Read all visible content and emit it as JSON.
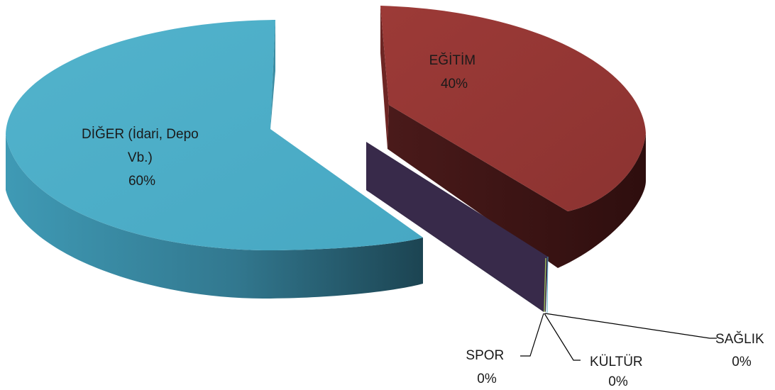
{
  "chart_data": {
    "type": "pie",
    "style": "3d-exploded",
    "title": "",
    "slices": [
      {
        "name": "EĞİTİM",
        "value": 40,
        "label": "40%",
        "color": "#943634"
      },
      {
        "name": "SAĞLIK",
        "value": 0,
        "label": "0%",
        "color": "#4f6228"
      },
      {
        "name": "KÜLTÜR",
        "value": 0,
        "label": "0%",
        "color": "#31859c"
      },
      {
        "name": "SPOR",
        "value": 0,
        "label": "0%",
        "color": "#7f6fb0"
      },
      {
        "name": "DİĞER (İdari, Depo Vb.)",
        "value": 60,
        "label": "60%",
        "color": "#4bacc6"
      }
    ],
    "data_labels": {
      "egitim": [
        "EĞİTİM",
        "40%"
      ],
      "diger": [
        "DİĞER (İdari, Depo",
        "Vb.)",
        "60%"
      ],
      "spor": [
        "SPOR",
        "0%"
      ],
      "kultur": [
        "KÜLTÜR",
        "0%"
      ],
      "saglik": [
        "SAĞLIK",
        "0%"
      ]
    },
    "legend": "none"
  }
}
